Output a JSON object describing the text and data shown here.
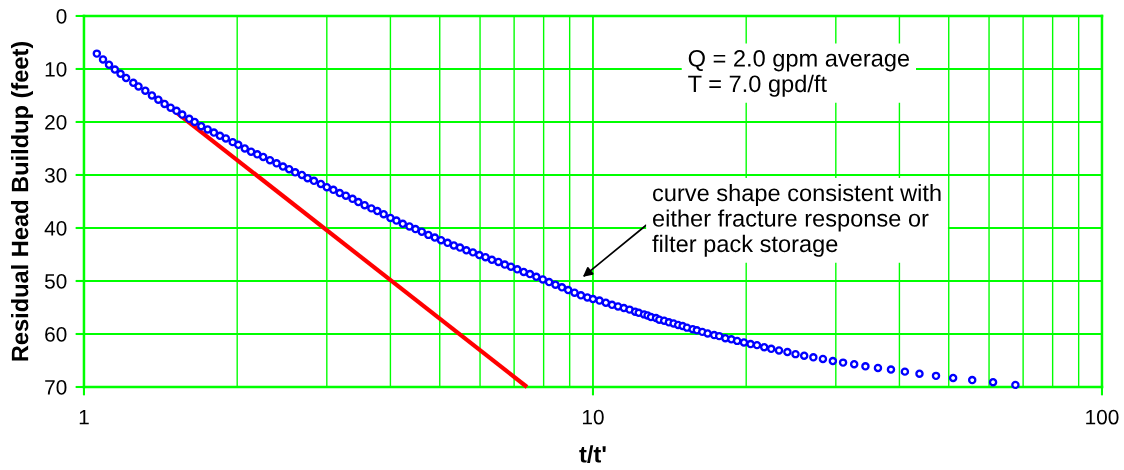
{
  "chart_data": {
    "type": "scatter",
    "xlabel": "t/t'",
    "ylabel": "Residual Head Buildup (feet)",
    "log": "x",
    "xlim": [
      1,
      100
    ],
    "xticks": [
      1,
      {
        "value": 2,
        "label": null
      },
      {
        "value": 3,
        "label": null
      },
      {
        "value": 4,
        "label": null
      },
      {
        "value": 5,
        "label": null
      },
      {
        "value": 6,
        "label": null
      },
      {
        "value": 7,
        "label": null
      },
      {
        "value": 8,
        "label": null
      },
      {
        "value": 9,
        "label": null
      },
      10,
      {
        "value": 20,
        "label": null
      },
      {
        "value": 30,
        "label": null
      },
      {
        "value": 40,
        "label": null
      },
      {
        "value": 50,
        "label": null
      },
      {
        "value": 60,
        "label": null
      },
      {
        "value": 70,
        "label": null
      },
      {
        "value": 80,
        "label": null
      },
      {
        "value": 90,
        "label": null
      },
      100
    ],
    "ylim": [
      70,
      0
    ],
    "yticks": [
      0,
      10,
      20,
      30,
      40,
      50,
      60,
      70
    ],
    "grid": true,
    "annotations": [
      "Q = 2.0 gpm average\nT = 7.0 gpd/ft",
      "curve shape consistent with\neither fracture response or\nfilter pack storage"
    ],
    "series": [
      {
        "type": "line",
        "color": "#ff0000",
        "x": [
          1.42,
          7.42
        ],
        "values": [
          16,
          70
        ]
      },
      {
        "color": "#0000ff",
        "marker": "circle",
        "x": [
          1.06,
          1.09,
          1.12,
          1.15,
          1.18,
          1.21,
          1.25,
          1.28,
          1.32,
          1.36,
          1.4,
          1.44,
          1.48,
          1.52,
          1.56,
          1.61,
          1.65,
          1.7,
          1.75,
          1.8,
          1.85,
          1.9,
          1.96,
          2.01,
          2.07,
          2.13,
          2.19,
          2.25,
          2.32,
          2.39,
          2.46,
          2.53,
          2.6,
          2.68,
          2.75,
          2.83,
          2.92,
          3.0,
          3.09,
          3.18,
          3.27,
          3.37,
          3.46,
          3.56,
          3.67,
          3.77,
          3.88,
          4.0,
          4.11,
          4.23,
          4.36,
          4.48,
          4.61,
          4.75,
          4.89,
          5.03,
          5.18,
          5.33,
          5.48,
          5.64,
          5.81,
          5.98,
          6.15,
          6.33,
          6.52,
          6.71,
          6.9,
          7.1,
          7.31,
          7.52,
          7.74,
          7.97,
          8.2,
          8.44,
          8.69,
          8.94,
          9.2,
          9.47,
          9.75,
          10.0,
          10.3,
          10.6,
          10.9,
          11.2,
          11.5,
          11.8,
          12.1,
          12.3,
          12.6,
          12.8,
          13.0,
          13.3,
          13.5,
          13.8,
          14.1,
          14.4,
          14.7,
          15.0,
          15.3,
          15.7,
          16.0,
          16.4,
          16.8,
          17.3,
          17.7,
          18.2,
          18.7,
          19.2,
          19.8,
          20.4,
          21.0,
          21.7,
          22.4,
          23.2,
          24.1,
          25.0,
          26.0,
          27.1,
          28.3,
          29.6,
          31.0,
          32.6,
          34.3,
          36.3,
          38.5,
          41.0,
          43.8,
          47.2,
          51.0,
          55.6,
          61.1,
          67.6
        ],
        "values": [
          7.1,
          8.2,
          9.2,
          10.1,
          10.9,
          11.7,
          12.6,
          13.3,
          14.1,
          15.0,
          15.8,
          16.6,
          17.3,
          17.9,
          18.6,
          19.4,
          20.0,
          20.8,
          21.4,
          22.0,
          22.6,
          23.1,
          23.8,
          24.3,
          25.0,
          25.6,
          26.1,
          26.6,
          27.2,
          27.8,
          28.4,
          28.9,
          29.5,
          30.0,
          30.6,
          31.1,
          31.7,
          32.3,
          32.8,
          33.4,
          33.9,
          34.5,
          35.1,
          35.7,
          36.3,
          36.8,
          37.4,
          38.1,
          38.6,
          39.2,
          39.7,
          40.2,
          40.7,
          41.3,
          41.8,
          42.3,
          42.8,
          43.3,
          43.7,
          44.2,
          44.6,
          45.1,
          45.5,
          46.0,
          46.4,
          46.9,
          47.3,
          47.8,
          48.3,
          48.7,
          49.2,
          49.7,
          50.2,
          50.7,
          51.2,
          51.7,
          52.2,
          52.7,
          53.1,
          53.4,
          53.7,
          54.1,
          54.5,
          54.8,
          55.1,
          55.4,
          55.8,
          56.0,
          56.3,
          56.5,
          56.8,
          57.0,
          57.3,
          57.5,
          57.8,
          58.0,
          58.3,
          58.5,
          58.8,
          59.1,
          59.3,
          59.6,
          59.9,
          60.2,
          60.4,
          60.8,
          61.0,
          61.3,
          61.6,
          61.9,
          62.1,
          62.5,
          62.8,
          63.1,
          63.4,
          63.8,
          64.1,
          64.4,
          64.7,
          65.1,
          65.4,
          65.7,
          66.1,
          66.4,
          66.7,
          67.1,
          67.5,
          67.9,
          68.3,
          68.7,
          69.1,
          69.6
        ]
      }
    ]
  }
}
